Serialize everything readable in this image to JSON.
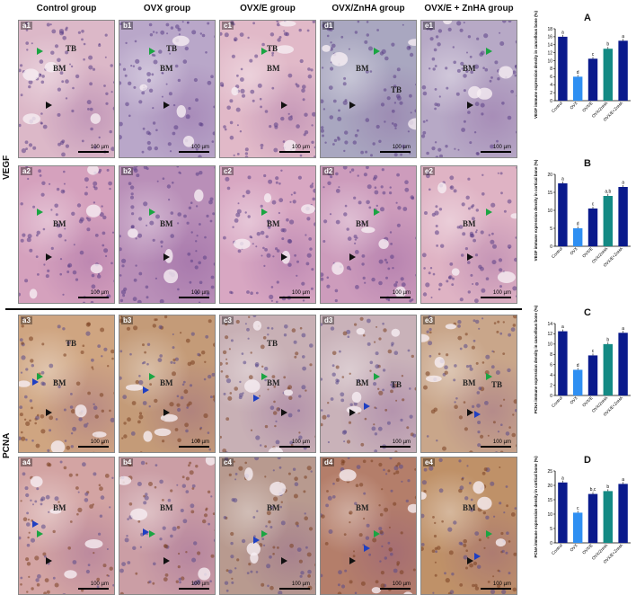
{
  "columns": [
    "Control group",
    "OVX group",
    "OVX/E group",
    "OVX/ZnHA group",
    "OVX/E + ZnHA group"
  ],
  "row_labels": {
    "vegf": "VEGF",
    "pcna": "PCNA"
  },
  "panels": [
    [
      "a1",
      "b1",
      "c1",
      "d1",
      "e1"
    ],
    [
      "a2",
      "b2",
      "c2",
      "d2",
      "e2"
    ],
    [
      "a3",
      "b3",
      "c3",
      "d3",
      "e3"
    ],
    [
      "a4",
      "b4",
      "c4",
      "d4",
      "e4"
    ]
  ],
  "tags": {
    "tb": "TB",
    "bm": "BM"
  },
  "scale_label": "100 µm",
  "colors": {
    "he_pink": "#d9a3c0",
    "purple": "#8c6aa8",
    "brown": "#b46a3a",
    "navy": "#0a1a8c",
    "blue": "#2f8ff2",
    "teal": "#148a84"
  },
  "chart_data": [
    {
      "type": "bar",
      "letter": "A",
      "ylabel": "VEGF immune expression density in cancellous bone (%)",
      "categories": [
        "Control",
        "OVX",
        "OVX/E",
        "OVX/ZnHA",
        "OVX/E+ZnHA"
      ],
      "values": [
        16,
        6,
        10.5,
        13,
        15
      ],
      "letters": [
        "a",
        "d",
        "c",
        "b",
        "a"
      ],
      "ylim": [
        0,
        18
      ],
      "ticks": [
        0,
        2,
        4,
        6,
        8,
        10,
        12,
        14,
        16,
        18
      ]
    },
    {
      "type": "bar",
      "letter": "B",
      "ylabel": "VEGF immune expression density in cortical bone (%)",
      "categories": [
        "Control",
        "OVX",
        "OVX/E",
        "OVX/ZnHA",
        "OVX/E+ZnHA"
      ],
      "values": [
        17.5,
        5,
        10.5,
        14,
        16.5
      ],
      "letters": [
        "a",
        "d",
        "c",
        "a,b",
        "a"
      ],
      "ylim": [
        0,
        20
      ],
      "ticks": [
        0,
        5,
        10,
        15,
        20
      ]
    },
    {
      "type": "bar",
      "letter": "C",
      "ylabel": "PCNA immune expression density in cancellous bone (%)",
      "categories": [
        "Control",
        "OVX",
        "OVX/E",
        "OVX/ZnHA",
        "OVX/E+ZnHA"
      ],
      "values": [
        12.5,
        5,
        7.8,
        10,
        12.2
      ],
      "letters": [
        "a",
        "d",
        "c",
        "b",
        "a"
      ],
      "ylim": [
        0,
        14
      ],
      "ticks": [
        0,
        2,
        4,
        6,
        8,
        10,
        12,
        14
      ]
    },
    {
      "type": "bar",
      "letter": "D",
      "ylabel": "PCNA immune expression density in cortical bone (%)",
      "categories": [
        "Control",
        "OVX",
        "OVX/E",
        "OVX/ZnHA",
        "OVX/E+ZnHA"
      ],
      "values": [
        21,
        10.5,
        17,
        18,
        20.5
      ],
      "letters": [
        "a",
        "c",
        "b,c",
        "b",
        "a"
      ],
      "ylim": [
        0,
        25
      ],
      "ticks": [
        0,
        5,
        10,
        15,
        20,
        25
      ]
    }
  ]
}
